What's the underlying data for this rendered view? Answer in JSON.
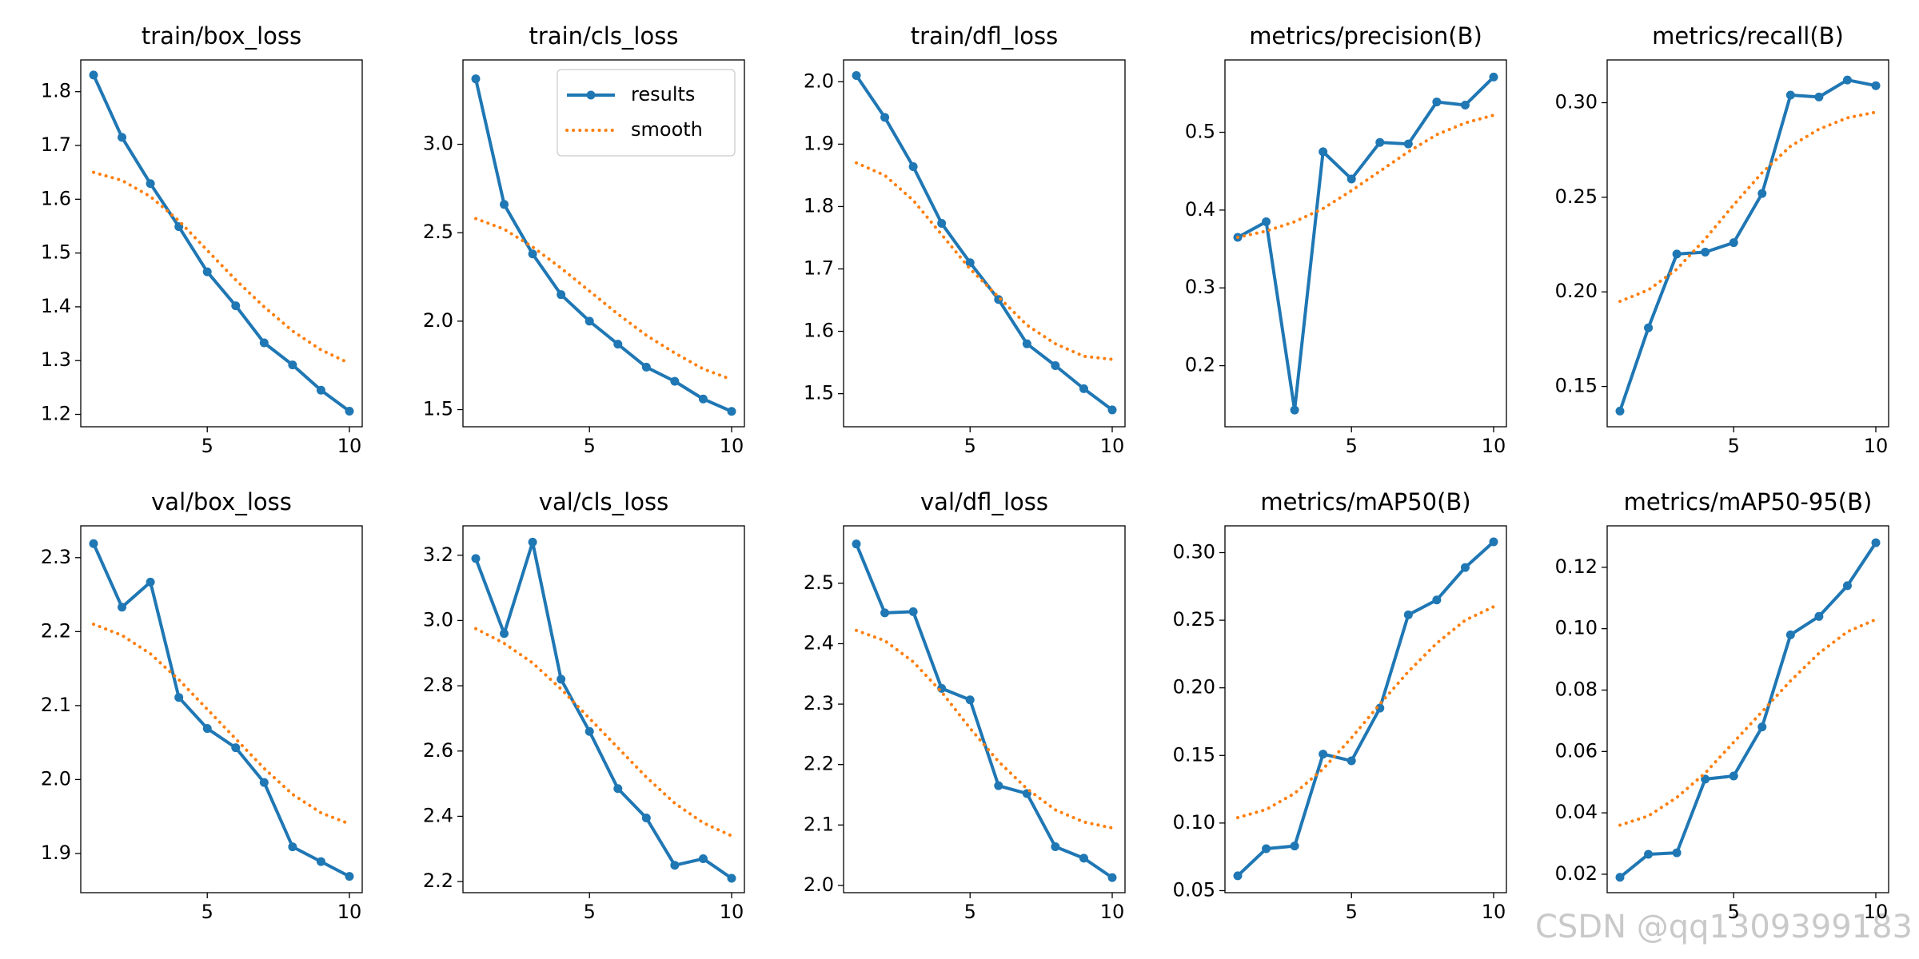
{
  "chart_data": [
    {
      "type": "line",
      "title": "train/box_loss",
      "x": [
        1,
        2,
        3,
        4,
        5,
        6,
        7,
        8,
        9,
        10
      ],
      "xlim": [
        0.55,
        10.45
      ],
      "xticks": [
        5,
        10
      ],
      "ylim": [
        1.177,
        1.859
      ],
      "yticks": [
        1.2,
        1.3,
        1.4,
        1.5,
        1.6,
        1.7,
        1.8
      ],
      "series": [
        {
          "color": "#1f77b4",
          "values": [
            1.831,
            1.715,
            1.629,
            1.549,
            1.465,
            1.402,
            1.333,
            1.292,
            1.245,
            1.206
          ]
        },
        {
          "color": "#ff7f0e",
          "values": [
            1.65,
            1.635,
            1.605,
            1.56,
            1.505,
            1.45,
            1.4,
            1.355,
            1.32,
            1.295
          ]
        }
      ]
    },
    {
      "type": "line",
      "title": "train/cls_loss",
      "x": [
        1,
        2,
        3,
        4,
        5,
        6,
        7,
        8,
        9,
        10
      ],
      "xlim": [
        0.55,
        10.45
      ],
      "xticks": [
        5,
        10
      ],
      "ylim": [
        1.403,
        3.477
      ],
      "yticks": [
        1.5,
        {
          "value": 2,
          "label": "2.0"
        },
        2.5,
        {
          "value": 3,
          "label": "3.0"
        }
      ],
      "legend": "upper right",
      "series": [
        {
          "name": "results",
          "color": "#1f77b4",
          "values": [
            3.37,
            2.66,
            2.38,
            2.15,
            2.0,
            1.87,
            1.74,
            1.66,
            1.56,
            1.49
          ]
        },
        {
          "name": "smooth",
          "color": "#ff7f0e",
          "values": [
            2.58,
            2.52,
            2.42,
            2.3,
            2.17,
            2.04,
            1.92,
            1.82,
            1.73,
            1.67
          ]
        }
      ]
    },
    {
      "type": "line",
      "title": "train/dfl_loss",
      "x": [
        1,
        2,
        3,
        4,
        5,
        6,
        7,
        8,
        9,
        10
      ],
      "xlim": [
        0.55,
        10.45
      ],
      "xticks": [
        5,
        10
      ],
      "ylim": [
        1.447,
        2.035
      ],
      "yticks": [
        1.5,
        1.6,
        1.7,
        1.8,
        1.9,
        {
          "value": 2,
          "label": "2.0"
        }
      ],
      "series": [
        {
          "color": "#1f77b4",
          "values": [
            2.01,
            1.943,
            1.864,
            1.773,
            1.71,
            1.651,
            1.58,
            1.545,
            1.508,
            1.474
          ]
        },
        {
          "color": "#ff7f0e",
          "values": [
            1.87,
            1.85,
            1.81,
            1.755,
            1.7,
            1.655,
            1.61,
            1.58,
            1.56,
            1.555
          ]
        }
      ]
    },
    {
      "type": "line",
      "title": "metrics/precision(B)",
      "x": [
        1,
        2,
        3,
        4,
        5,
        6,
        7,
        8,
        9,
        10
      ],
      "xlim": [
        0.55,
        10.45
      ],
      "xticks": [
        5,
        10
      ],
      "ylim": [
        0.1215,
        0.593
      ],
      "yticks": [
        0.2,
        0.3,
        0.4,
        0.5
      ],
      "series": [
        {
          "color": "#1f77b4",
          "values": [
            0.365,
            0.385,
            0.143,
            0.475,
            0.44,
            0.487,
            0.485,
            0.539,
            0.535,
            0.571
          ]
        },
        {
          "color": "#ff7f0e",
          "values": [
            0.365,
            0.373,
            0.385,
            0.402,
            0.425,
            0.45,
            0.475,
            0.497,
            0.512,
            0.522
          ]
        }
      ]
    },
    {
      "type": "line",
      "title": "metrics/recall(B)",
      "x": [
        1,
        2,
        3,
        4,
        5,
        6,
        7,
        8,
        9,
        10
      ],
      "xlim": [
        0.55,
        10.45
      ],
      "xticks": [
        5,
        10
      ],
      "ylim": [
        0.1287,
        0.3226
      ],
      "yticks": [
        0.15,
        {
          "value": 0.2,
          "label": "0.20"
        },
        0.25,
        {
          "value": 0.3,
          "label": "0.30"
        }
      ],
      "series": [
        {
          "color": "#1f77b4",
          "values": [
            0.137,
            0.181,
            0.22,
            0.221,
            0.226,
            0.252,
            0.304,
            0.303,
            0.312,
            0.309
          ]
        },
        {
          "color": "#ff7f0e",
          "values": [
            0.195,
            0.201,
            0.212,
            0.228,
            0.246,
            0.263,
            0.277,
            0.286,
            0.292,
            0.295
          ]
        }
      ]
    },
    {
      "type": "line",
      "title": "val/box_loss",
      "x": [
        1,
        2,
        3,
        4,
        5,
        6,
        7,
        8,
        9,
        10
      ],
      "xlim": [
        0.55,
        10.45
      ],
      "xticks": [
        5,
        10
      ],
      "ylim": [
        1.847,
        2.343
      ],
      "yticks": [
        1.9,
        {
          "value": 2,
          "label": "2.0"
        },
        2.1,
        2.2,
        2.3
      ],
      "series": [
        {
          "color": "#1f77b4",
          "values": [
            2.319,
            2.233,
            2.267,
            2.111,
            2.069,
            2.043,
            1.996,
            1.909,
            1.889,
            1.869
          ]
        },
        {
          "color": "#ff7f0e",
          "values": [
            2.21,
            2.195,
            2.17,
            2.135,
            2.095,
            2.055,
            2.015,
            1.98,
            1.955,
            1.94
          ]
        }
      ]
    },
    {
      "type": "line",
      "title": "val/cls_loss",
      "x": [
        1,
        2,
        3,
        4,
        5,
        6,
        7,
        8,
        9,
        10
      ],
      "xlim": [
        0.55,
        10.45
      ],
      "xticks": [
        5,
        10
      ],
      "ylim": [
        2.166,
        3.29
      ],
      "yticks": [
        2.2,
        2.4,
        2.6,
        2.8,
        {
          "value": 3,
          "label": "3.0"
        },
        3.2
      ],
      "series": [
        {
          "color": "#1f77b4",
          "values": [
            3.19,
            2.96,
            3.24,
            2.82,
            2.66,
            2.485,
            2.395,
            2.25,
            2.27,
            2.21
          ]
        },
        {
          "color": "#ff7f0e",
          "values": [
            2.975,
            2.93,
            2.87,
            2.79,
            2.7,
            2.61,
            2.52,
            2.44,
            2.38,
            2.34
          ]
        }
      ]
    },
    {
      "type": "line",
      "title": "val/dfl_loss",
      "x": [
        1,
        2,
        3,
        4,
        5,
        6,
        7,
        8,
        9,
        10
      ],
      "xlim": [
        0.55,
        10.45
      ],
      "xticks": [
        5,
        10
      ],
      "ylim": [
        1.988,
        2.595
      ],
      "yticks": [
        {
          "value": 2,
          "label": "2.0"
        },
        2.1,
        2.2,
        2.3,
        2.4,
        2.5
      ],
      "series": [
        {
          "color": "#1f77b4",
          "values": [
            2.565,
            2.451,
            2.453,
            2.326,
            2.307,
            2.165,
            2.152,
            2.064,
            2.045,
            2.013
          ]
        },
        {
          "color": "#ff7f0e",
          "values": [
            2.422,
            2.405,
            2.37,
            2.32,
            2.26,
            2.205,
            2.16,
            2.125,
            2.105,
            2.095
          ]
        }
      ]
    },
    {
      "type": "line",
      "title": "metrics/mAP50(B)",
      "x": [
        1,
        2,
        3,
        4,
        5,
        6,
        7,
        8,
        9,
        10
      ],
      "xlim": [
        0.55,
        10.45
      ],
      "xticks": [
        5,
        10
      ],
      "ylim": [
        0.0485,
        0.3198
      ],
      "yticks": [
        0.05,
        {
          "value": 0.1,
          "label": "0.10"
        },
        0.15,
        {
          "value": 0.2,
          "label": "0.20"
        },
        0.25,
        {
          "value": 0.3,
          "label": "0.30"
        }
      ],
      "series": [
        {
          "color": "#1f77b4",
          "values": [
            0.061,
            0.081,
            0.083,
            0.151,
            0.146,
            0.185,
            0.254,
            0.265,
            0.289,
            0.308
          ]
        },
        {
          "color": "#ff7f0e",
          "values": [
            0.104,
            0.11,
            0.122,
            0.14,
            0.163,
            0.188,
            0.212,
            0.233,
            0.25,
            0.26
          ]
        }
      ]
    },
    {
      "type": "line",
      "title": "metrics/mAP50-95(B)",
      "x": [
        1,
        2,
        3,
        4,
        5,
        6,
        7,
        8,
        9,
        10
      ],
      "xlim": [
        0.55,
        10.45
      ],
      "xticks": [
        5,
        10
      ],
      "ylim": [
        0.014,
        0.1335
      ],
      "yticks": [
        0.02,
        0.04,
        0.06,
        0.08,
        {
          "value": 0.1,
          "label": "0.10"
        },
        0.12
      ],
      "series": [
        {
          "color": "#1f77b4",
          "values": [
            0.019,
            0.0265,
            0.027,
            0.051,
            0.052,
            0.068,
            0.098,
            0.104,
            0.114,
            0.128
          ]
        },
        {
          "color": "#ff7f0e",
          "values": [
            0.036,
            0.039,
            0.045,
            0.053,
            0.063,
            0.073,
            0.083,
            0.092,
            0.099,
            0.103
          ]
        }
      ]
    }
  ],
  "watermark": "CSDN @qq1309399183"
}
